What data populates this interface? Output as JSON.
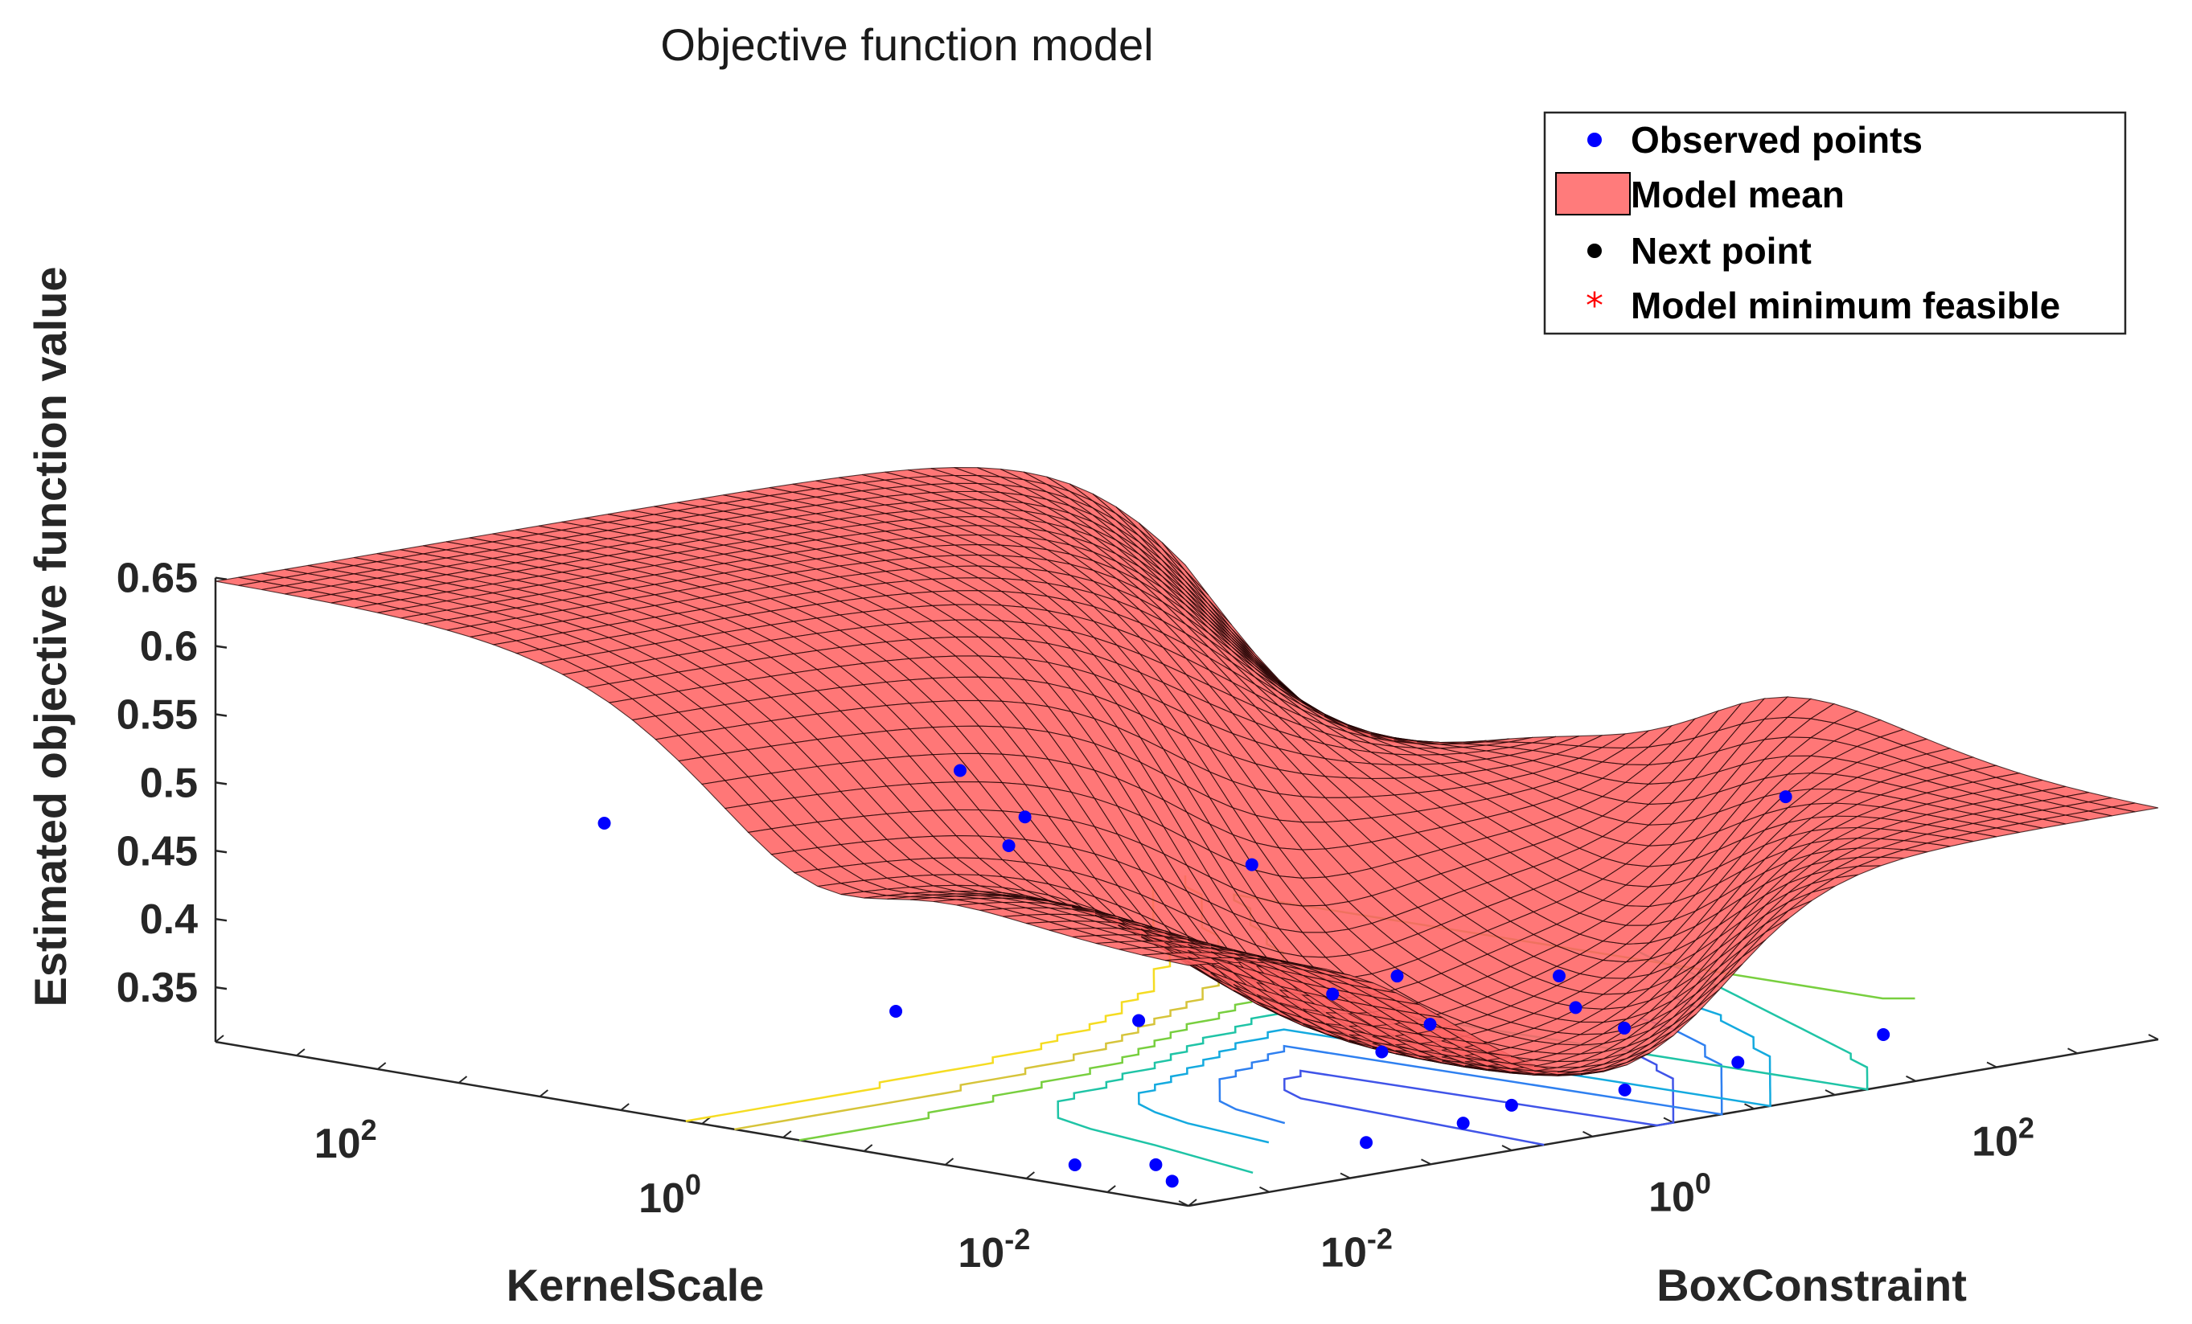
{
  "chart_data": {
    "type": "surface3d",
    "title": "Objective function model",
    "xlabel": "BoxConstraint",
    "ylabel": "KernelScale",
    "zlabel": "Estimated objective function value",
    "x_scale": "log",
    "y_scale": "log",
    "xlim_log10": [
      -3,
      3
    ],
    "ylim_log10": [
      -3,
      3
    ],
    "zlim": [
      0.31,
      0.65
    ],
    "x_ticks": [
      {
        "base": "10",
        "exp": "-2",
        "log10": -2
      },
      {
        "base": "10",
        "exp": "0",
        "log10": 0
      },
      {
        "base": "10",
        "exp": "2",
        "log10": 2
      }
    ],
    "y_ticks": [
      {
        "base": "10",
        "exp": "2",
        "log10": 2
      },
      {
        "base": "10",
        "exp": "0",
        "log10": 0
      },
      {
        "base": "10",
        "exp": "-2",
        "log10": -2
      }
    ],
    "z_ticks": [
      "0.65",
      "0.6",
      "0.55",
      "0.5",
      "0.45",
      "0.4",
      "0.35"
    ],
    "z_tick_values": [
      0.65,
      0.6,
      0.55,
      0.5,
      0.45,
      0.4,
      0.35
    ],
    "legend": {
      "location": "top-right",
      "entries": [
        {
          "label": "Observed points",
          "marker": "dot",
          "color": "#0000ff"
        },
        {
          "label": "Model mean",
          "marker": "patch",
          "color": "#ff7b7b"
        },
        {
          "label": "Next point",
          "marker": "dot",
          "color": "#000000"
        },
        {
          "label": "Model minimum feasible",
          "marker": "asterisk",
          "color": "#ff0000"
        }
      ]
    },
    "surface_color": "#ff6464",
    "observed_points": [
      {
        "x": -2.6,
        "y": -2.4,
        "z": 0.32
      },
      {
        "x": -2.9,
        "y": -2.2,
        "z": 0.322
      },
      {
        "x": -2.8,
        "y": -2.7,
        "z": 0.318
      },
      {
        "x": -1.8,
        "y": -2.9,
        "z": 0.33
      },
      {
        "x": -1.2,
        "y": -2.9,
        "z": 0.332
      },
      {
        "x": -0.8,
        "y": -2.8,
        "z": 0.335
      },
      {
        "x": -0.2,
        "y": -2.9,
        "z": 0.336
      },
      {
        "x": 0.6,
        "y": -2.8,
        "z": 0.338
      },
      {
        "x": 1.5,
        "y": -2.8,
        "z": 0.34
      },
      {
        "x": -0.6,
        "y": -1.8,
        "z": 0.35
      },
      {
        "x": 0.0,
        "y": -1.5,
        "z": 0.352
      },
      {
        "x": 0.8,
        "y": -1.6,
        "z": 0.35
      },
      {
        "x": 1.3,
        "y": -1.0,
        "z": 0.351
      },
      {
        "x": -0.9,
        "y": -0.6,
        "z": 0.355
      },
      {
        "x": -1.6,
        "y": 0.2,
        "z": 0.36
      },
      {
        "x": -2.3,
        "y": 1.3,
        "z": 0.49
      },
      {
        "x": -0.5,
        "y": 0.9,
        "z": 0.5
      },
      {
        "x": -0.4,
        "y": 0.6,
        "z": 0.47
      },
      {
        "x": -0.6,
        "y": 0.5,
        "z": 0.455
      },
      {
        "x": -0.2,
        "y": -0.6,
        "z": 0.455
      },
      {
        "x": 2.3,
        "y": -1.4,
        "z": 0.47
      },
      {
        "x": 1.0,
        "y": -0.3,
        "z": 0.343
      },
      {
        "x": 0.4,
        "y": -0.5,
        "z": 0.346
      },
      {
        "x": 0.7,
        "y": -2.0,
        "z": 0.345
      }
    ]
  }
}
